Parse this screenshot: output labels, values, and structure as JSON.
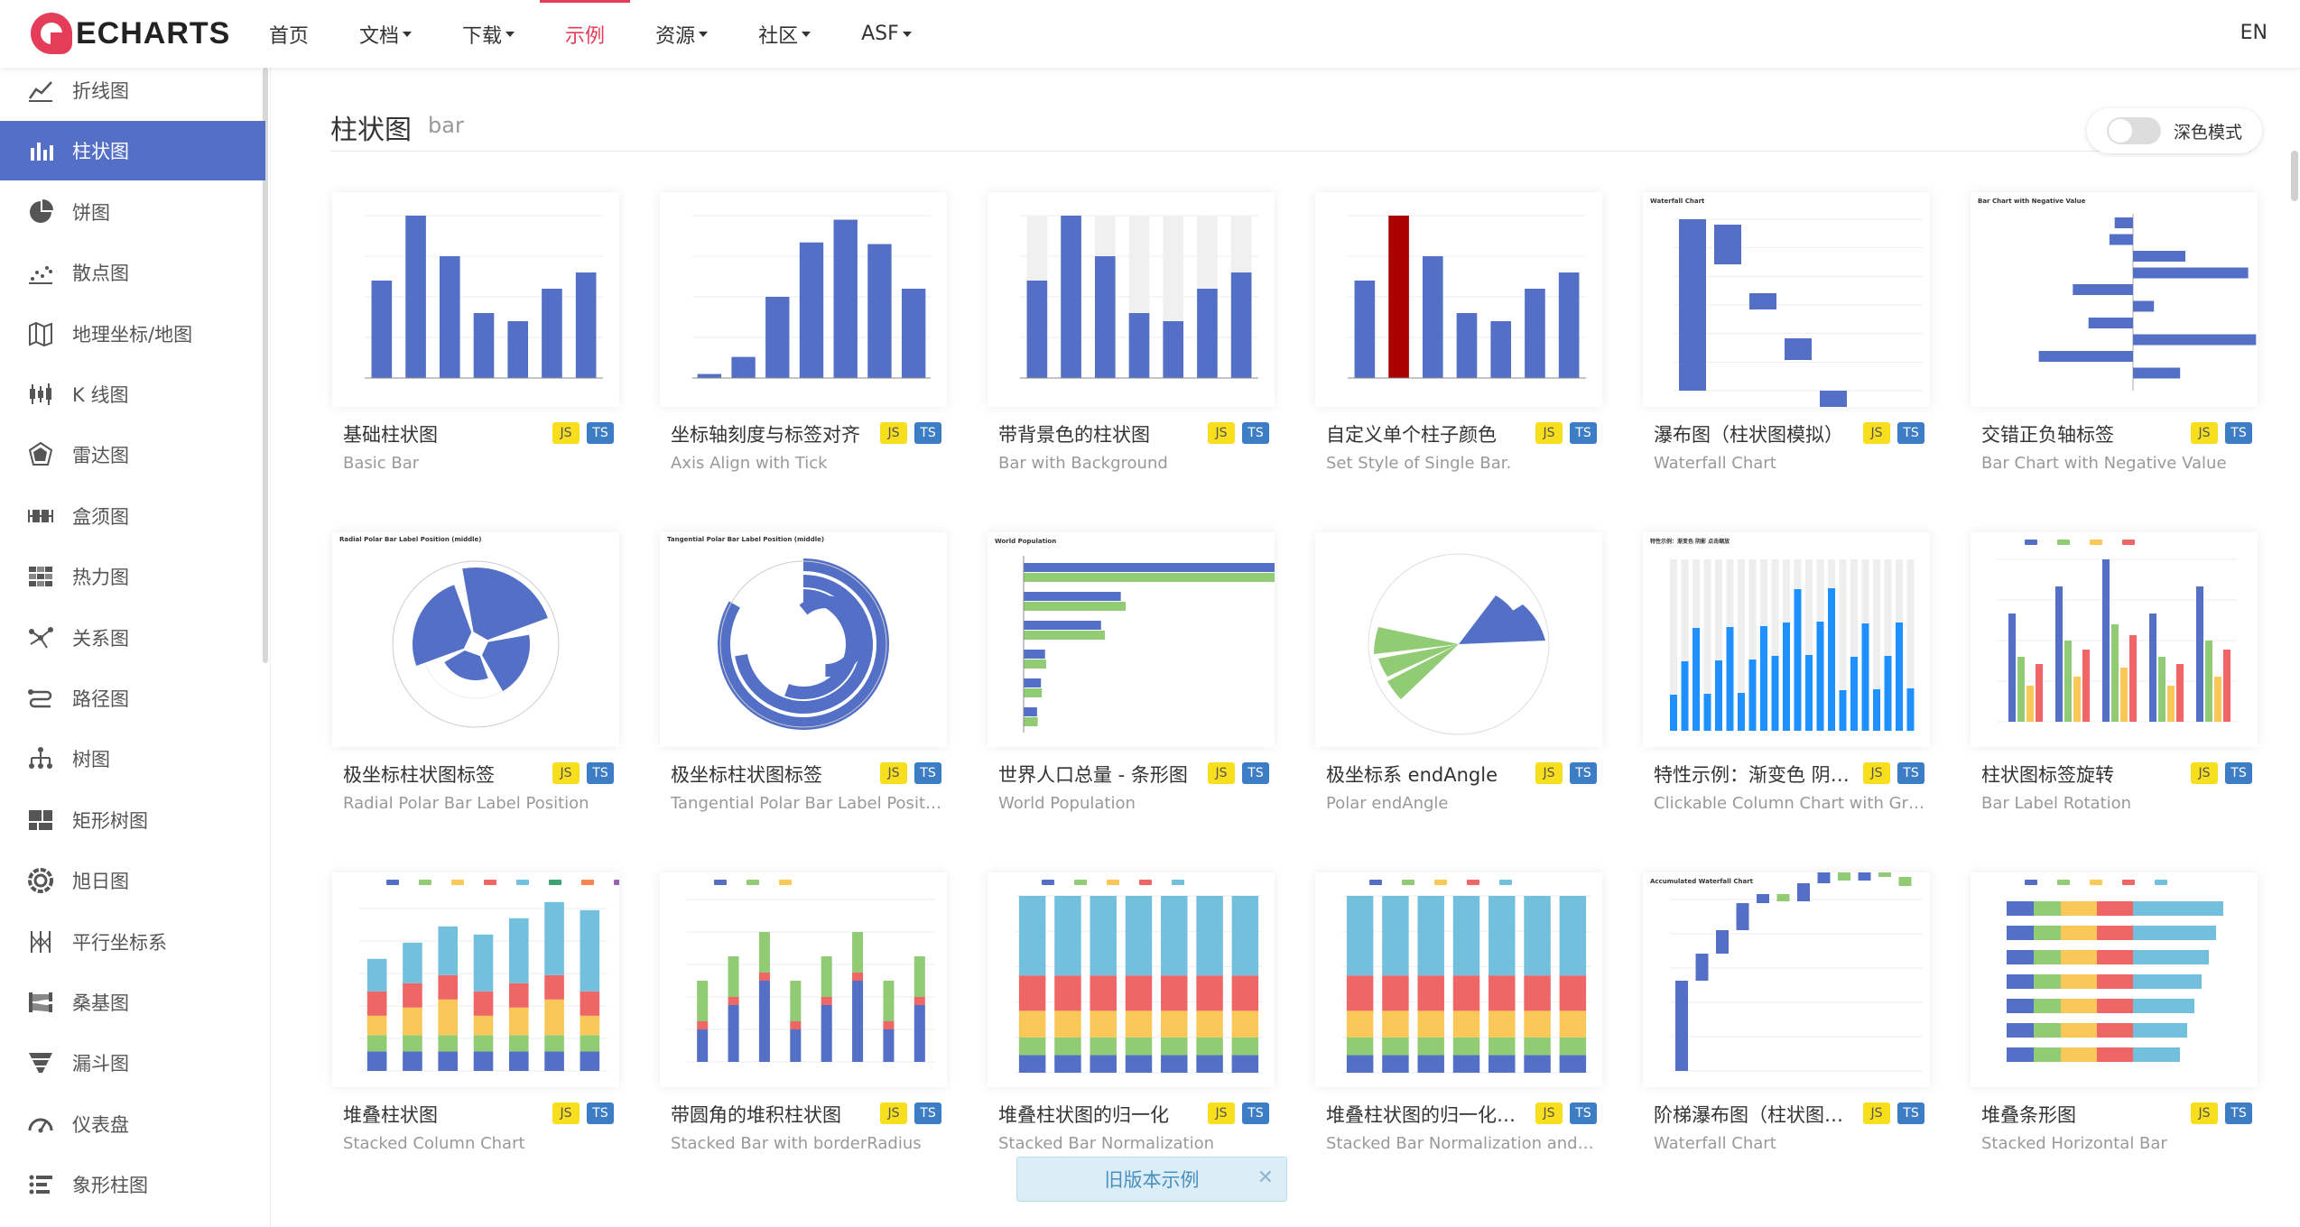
{
  "nav": {
    "logo_text": "ECHARTS",
    "items": [
      "首页",
      "文档",
      "下载",
      "示例",
      "资源",
      "社区",
      "ASF"
    ],
    "lang": "EN"
  },
  "sidebar": {
    "items": [
      {
        "label": "折线图",
        "icon": "line-chart-icon"
      },
      {
        "label": "柱状图",
        "icon": "bar-chart-icon"
      },
      {
        "label": "饼图",
        "icon": "pie-chart-icon"
      },
      {
        "label": "散点图",
        "icon": "scatter-icon"
      },
      {
        "label": "地理坐标/地图",
        "icon": "map-icon"
      },
      {
        "label": "K 线图",
        "icon": "candlestick-icon"
      },
      {
        "label": "雷达图",
        "icon": "radar-icon"
      },
      {
        "label": "盒须图",
        "icon": "boxplot-icon"
      },
      {
        "label": "热力图",
        "icon": "heatmap-icon"
      },
      {
        "label": "关系图",
        "icon": "graph-icon"
      },
      {
        "label": "路径图",
        "icon": "lines-icon"
      },
      {
        "label": "树图",
        "icon": "tree-icon"
      },
      {
        "label": "矩形树图",
        "icon": "treemap-icon"
      },
      {
        "label": "旭日图",
        "icon": "sunburst-icon"
      },
      {
        "label": "平行坐标系",
        "icon": "parallel-icon"
      },
      {
        "label": "桑基图",
        "icon": "sankey-icon"
      },
      {
        "label": "漏斗图",
        "icon": "funnel-icon"
      },
      {
        "label": "仪表盘",
        "icon": "gauge-icon"
      },
      {
        "label": "象形柱图",
        "icon": "pictorial-bar-icon"
      }
    ]
  },
  "page": {
    "title": "柱状图",
    "subtitle": "bar",
    "dark_mode_label": "深色模式"
  },
  "badges": {
    "js": "JS",
    "ts": "TS"
  },
  "cards": [
    {
      "title": "基础柱状图",
      "subtitle": "Basic Bar"
    },
    {
      "title": "坐标轴刻度与标签对齐",
      "subtitle": "Axis Align with Tick"
    },
    {
      "title": "带背景色的柱状图",
      "subtitle": "Bar with Background"
    },
    {
      "title": "自定义单个柱子颜色",
      "subtitle": "Set Style of Single Bar."
    },
    {
      "title": "瀑布图（柱状图模拟）",
      "subtitle": "Waterfall Chart"
    },
    {
      "title": "交错正负轴标签",
      "subtitle": "Bar Chart with Negative Value"
    },
    {
      "title": "极坐标柱状图标签",
      "subtitle": "Radial Polar Bar Label Position"
    },
    {
      "title": "极坐标柱状图标签",
      "subtitle": "Tangential Polar Bar Label Position"
    },
    {
      "title": "世界人口总量 - 条形图",
      "subtitle": "World Population"
    },
    {
      "title": "极坐标系 endAngle",
      "subtitle": "Polar endAngle"
    },
    {
      "title": "特性示例：渐变色 阴影 点击缩放",
      "subtitle": "Clickable Column Chart with Gradient"
    },
    {
      "title": "柱状图标签旋转",
      "subtitle": "Bar Label Rotation"
    },
    {
      "title": "堆叠柱状图",
      "subtitle": "Stacked Column Chart"
    },
    {
      "title": "带圆角的堆积柱状图",
      "subtitle": "Stacked Bar with borderRadius"
    },
    {
      "title": "堆叠柱状图的归一化",
      "subtitle": "Stacked Bar Normalization"
    },
    {
      "title": "堆叠柱状图的归一化和变量",
      "subtitle": "Stacked Bar Normalization and Variation"
    },
    {
      "title": "阶梯瀑布图（柱状图模拟）",
      "subtitle": "Waterfall Chart"
    },
    {
      "title": "堆叠条形图",
      "subtitle": "Stacked Horizontal Bar"
    }
  ],
  "thumb_text": {
    "waterfall": "Waterfall Chart",
    "negative": "Bar Chart with Negative Value",
    "radial": "Radial Polar Bar Label Position (middle)",
    "tangential": "Tangential Polar Bar Label Position (middle)",
    "population": "World Population",
    "gradient": "特性示例：渐变色 阴影 点击缩放",
    "accumulated": "Accumulated Waterfall Chart"
  },
  "thumb_data": {
    "basic": [
      120,
      200,
      150,
      80,
      70,
      110,
      130
    ],
    "axis_align": [
      10,
      52,
      200,
      334,
      390,
      330,
      220
    ],
    "population": [
      18203,
      23489,
      29034,
      104970,
      131744,
      630230
    ]
  },
  "old_version": "旧版本示例",
  "colors": {
    "accent": "#5470c6",
    "brand": "#e43c59"
  }
}
